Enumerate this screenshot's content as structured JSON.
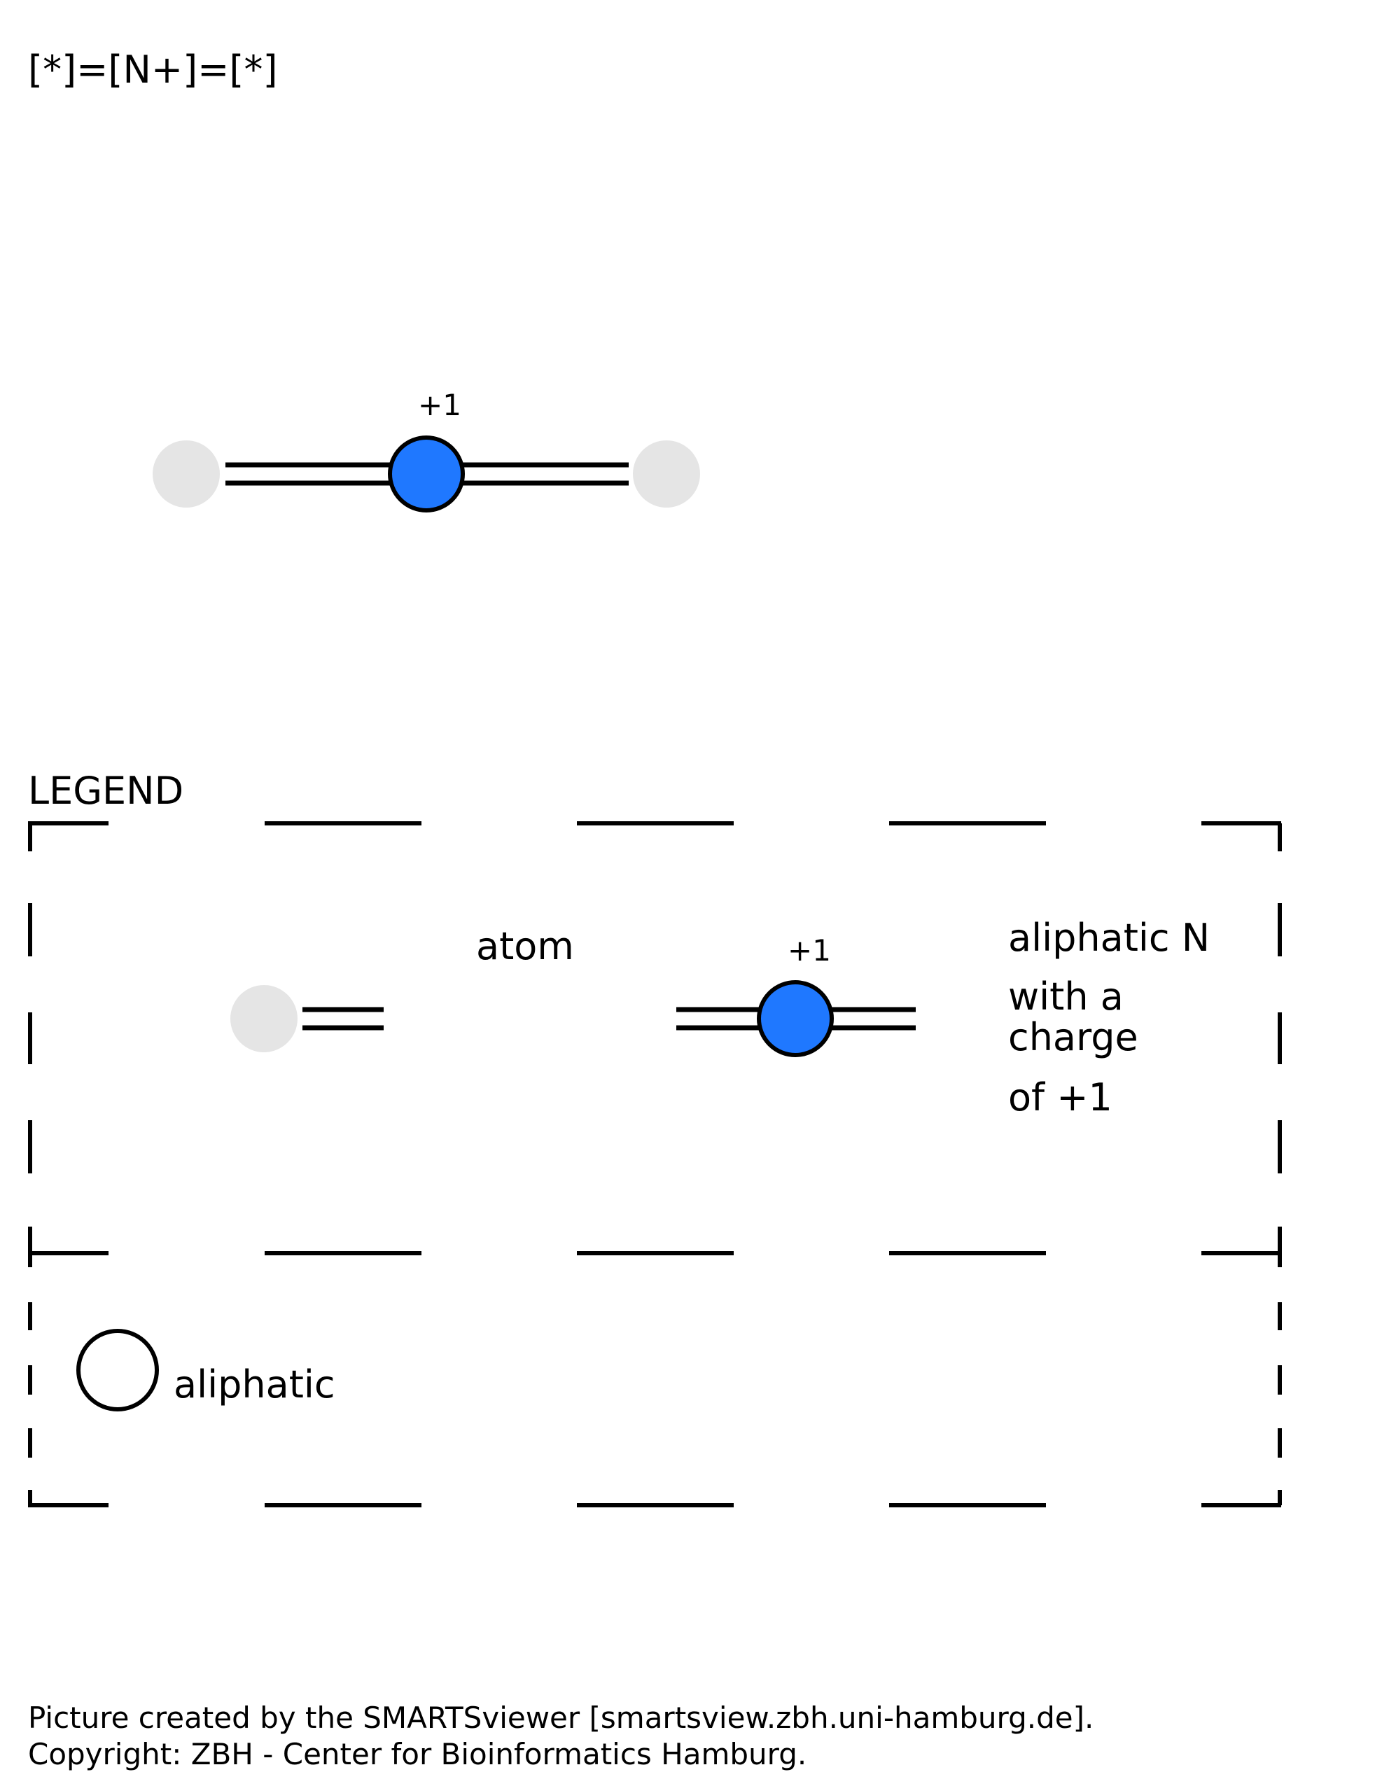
{
  "smarts": "[*]=[N+]=[*]",
  "main_molecule": {
    "charge_label": "+1"
  },
  "legend": {
    "title": "LEGEND",
    "row1": {
      "item1_label": "atom",
      "item2_charge": "+1",
      "item2_label_lines": [
        "aliphatic N",
        "with a",
        "charge",
        "of +1"
      ]
    },
    "row2": {
      "aliphatic_label": "aliphatic"
    }
  },
  "colors": {
    "nitrogen": "#1f78ff",
    "any_atom": "#e5e5e5",
    "stroke": "#000000"
  },
  "footer": {
    "line1": "Picture created by the SMARTSviewer [smartsview.zbh.uni-hamburg.de].",
    "line2": "Copyright: ZBH - Center for Bioinformatics Hamburg."
  }
}
